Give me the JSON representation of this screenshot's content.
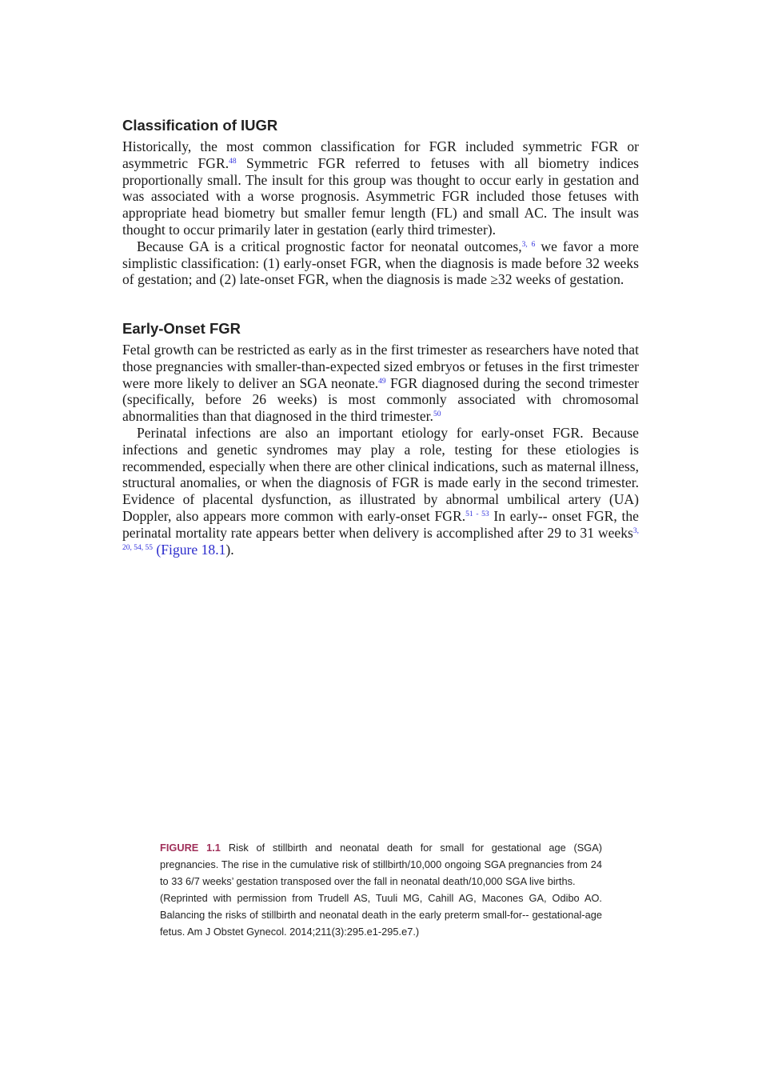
{
  "sections": [
    {
      "heading": "Classification of IUGR",
      "paragraphs": [
        [
          {
            "t": "Historically, the most common classification for FGR included symmetric FGR or asymmetric FGR."
          },
          {
            "sup": "48"
          },
          {
            "t": " Symmetric FGR referred to fetuses with all biometry indices proportionally small. The insult for this group was thought to occur early in gestation and was associated with a worse prognosis. Asymmetric FGR included those fetuses with appropriate head biometry but smaller femur length (FL) and small AC. The insult was thought to occur primarily later in gestation (early third trimester)."
          }
        ],
        [
          {
            "t": "Because GA is a critical prognostic factor for neonatal outcomes,"
          },
          {
            "sup": "3, 6"
          },
          {
            "t": " we favor a more simplistic classification: (1) early-onset FGR, when the diagnosis is made before 32 weeks of gestation; and (2) late-onset FGR, when the diagnosis is made ≥32 weeks of gestation."
          }
        ]
      ]
    },
    {
      "heading": "Early-Onset FGR",
      "paragraphs": [
        [
          {
            "t": "Fetal growth can be restricted as early as in the first trimester as researchers have noted that those pregnancies with smaller-than-expected sized embryos or fetuses in the first trimester were more likely to deliver an SGA neonate."
          },
          {
            "sup": "49"
          },
          {
            "t": " FGR diagnosed during the second trimester (specifically, before 26 weeks) is most commonly associated with chromosomal abnormalities than that diagnosed in the third trimester."
          },
          {
            "sup": "50"
          }
        ],
        [
          {
            "t": "Perinatal infections are also an important etiology for early-onset FGR. Because infections and genetic syndromes may play a role, testing for these etiologies is recommended, especially when there are other clinical indications, such as maternal illness, structural anomalies, or when the diagnosis of FGR is made early in the second trimester. Evidence of placental dysfunction, as illustrated by abnormal umbilical artery (UA) Doppler, also appears more common with early-onset FGR."
          },
          {
            "sup": "51 - 53"
          },
          {
            "t": " In early-- onset FGR, the perinatal mortality rate appears better when delivery is accomplished after 29 to 31 weeks"
          },
          {
            "sup": "3, 20, 54, 55"
          },
          {
            "t": " "
          },
          {
            "link": "(Figure 18.1"
          },
          {
            "t": ")."
          }
        ]
      ]
    }
  ],
  "figure": {
    "label": "FIGURE 1.1",
    "caption": "Risk of stillbirth and neonatal death for small for gestational age (SGA) pregnancies. The rise in the cumulative risk of stillbirth/10,000 ongoing SGA pregnancies from 24 to 33 6/7 weeks’ gestation transposed over the fall in neonatal death/10,000 SGA live births.",
    "credit": "(Reprinted with permission from Trudell AS, Tuuli MG, Cahill AG, Macones GA, Odibo AO. Balancing the risks of stillbirth and neonatal death in the early preterm small-for-- gestational-age fetus. Am J Obstet Gynecol. 2014;211(3):295.e1-295.e7.)"
  }
}
